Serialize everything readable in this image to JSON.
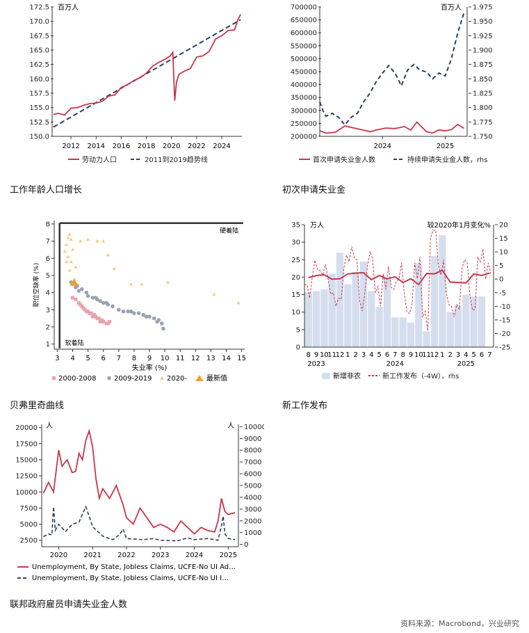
{
  "captions": [
    "工作年龄人口增长",
    "初次申请失业金",
    "贝弗里奇曲线",
    "新工作发布",
    "联邦政府雇员申请失业金人数"
  ],
  "source": "资料来源：Macrobond，兴业研究",
  "colors": {
    "red": "#c8364a",
    "navy": "#2e3e5c",
    "grey": "#9aa3b4",
    "pink": "#e9a2ab",
    "orange": "#f0a030",
    "lightorange": "#f5c77c",
    "lightblue": "#d5deee"
  },
  "chart_data": [
    {
      "id": "labor",
      "type": "line",
      "unit": "百万人",
      "ylim": [
        150.0,
        172.5
      ],
      "yticks": [
        "150.0",
        "152.5",
        "155.0",
        "157.5",
        "160.0",
        "162.5",
        "165.0",
        "167.5",
        "170.0",
        "172.5"
      ],
      "xlim": [
        2010.5,
        2025.6
      ],
      "xticks": [
        "2012",
        "2014",
        "2016",
        "2018",
        "2020",
        "2022",
        "2024"
      ],
      "series": [
        {
          "name": "劳动力人口",
          "x": [
            2010.6,
            2011.0,
            2011.5,
            2012.0,
            2012.5,
            2013.0,
            2013.5,
            2014.0,
            2014.5,
            2015.0,
            2015.5,
            2016.0,
            2016.5,
            2017.0,
            2017.5,
            2018.0,
            2018.5,
            2019.0,
            2019.5,
            2019.9,
            2020.1,
            2020.25,
            2020.4,
            2020.6,
            2021.0,
            2021.5,
            2022.0,
            2022.5,
            2023.0,
            2023.5,
            2024.0,
            2024.5,
            2025.0,
            2025.3,
            2025.5
          ],
          "y": [
            153.8,
            154.0,
            153.7,
            154.9,
            155.0,
            155.4,
            155.7,
            155.8,
            156.1,
            157.0,
            157.2,
            158.5,
            159.0,
            159.7,
            160.2,
            161.0,
            162.2,
            162.9,
            163.4,
            164.0,
            164.6,
            156.2,
            159.5,
            160.8,
            161.3,
            161.8,
            163.8,
            164.0,
            164.8,
            166.9,
            167.5,
            168.4,
            168.5,
            170.4,
            171.2
          ]
        },
        {
          "name": "2011到2019趋势线",
          "x": [
            2010.6,
            2025.5
          ],
          "y": [
            151.6,
            170.3
          ]
        }
      ]
    },
    {
      "id": "claims",
      "type": "line",
      "ylim": [
        200000,
        700000
      ],
      "yticks": [
        "200000",
        "250000",
        "300000",
        "350000",
        "400000",
        "450000",
        "500000",
        "550000",
        "600000",
        "650000",
        "700000"
      ],
      "y2lim": [
        1.75,
        1.975
      ],
      "y2ticks": [
        "1.750",
        "1.775",
        "1.800",
        "1.825",
        "1.850",
        "1.875",
        "1.900",
        "1.925",
        "1.950",
        "1.975"
      ],
      "y2unit": "百万人",
      "xlim": [
        2023.0,
        2025.35
      ],
      "xticks": [
        "2024",
        "2025"
      ],
      "series": [
        {
          "name": "首次申请失业金人数",
          "x": [
            2023.0,
            2023.1,
            2023.25,
            2023.4,
            2023.55,
            2023.7,
            2023.8,
            2023.95,
            2024.05,
            2024.2,
            2024.35,
            2024.45,
            2024.55,
            2024.7,
            2024.8,
            2024.9,
            2025.0,
            2025.1,
            2025.2,
            2025.3
          ],
          "y": [
            222000,
            212000,
            216000,
            240000,
            232000,
            224000,
            218000,
            227000,
            232000,
            230000,
            238000,
            224000,
            255000,
            218000,
            213000,
            225000,
            221000,
            226000,
            246000,
            231000
          ]
        },
        {
          "name": "持续申请失业金人数，rhs",
          "x": [
            2023.0,
            2023.05,
            2023.1,
            2023.2,
            2023.3,
            2023.4,
            2023.5,
            2023.6,
            2023.7,
            2023.8,
            2023.9,
            2024.0,
            2024.1,
            2024.2,
            2024.3,
            2024.4,
            2024.5,
            2024.6,
            2024.7,
            2024.8,
            2024.9,
            2025.0,
            2025.1,
            2025.2,
            2025.3
          ],
          "y": [
            1.81,
            1.795,
            1.785,
            1.79,
            1.783,
            1.77,
            1.783,
            1.79,
            1.81,
            1.825,
            1.845,
            1.86,
            1.873,
            1.86,
            1.838,
            1.865,
            1.875,
            1.865,
            1.862,
            1.85,
            1.86,
            1.855,
            1.885,
            1.93,
            1.965
          ]
        }
      ]
    },
    {
      "id": "beveridge",
      "type": "scatter",
      "xlabel": "失业率 (%)",
      "ylabel": "职位空缺率 (%)",
      "xlim": [
        2.8,
        15.2
      ],
      "ylim": [
        0.7,
        8.2
      ],
      "xticks": [
        "3",
        "4",
        "5",
        "6",
        "7",
        "8",
        "9",
        "10",
        "11",
        "12",
        "13",
        "14",
        "15"
      ],
      "yticks": [
        "1",
        "2",
        "3",
        "4",
        "5",
        "6",
        "7",
        "8"
      ],
      "annotations": [
        "硬着陆",
        "软着陆"
      ],
      "series": [
        {
          "name": "2000-2008",
          "x": [
            4.0,
            4.2,
            4.4,
            4.5,
            4.6,
            4.8,
            5.0,
            5.2,
            5.4,
            5.5,
            5.7,
            5.9,
            6.0,
            6.2,
            4.7,
            4.9,
            5.1,
            5.3,
            5.6,
            5.8,
            6.3,
            6.4
          ],
          "y": [
            3.7,
            3.6,
            3.4,
            3.3,
            3.2,
            3.0,
            2.9,
            2.8,
            2.7,
            2.6,
            2.5,
            2.4,
            2.3,
            2.2,
            3.1,
            2.9,
            2.8,
            2.6,
            2.5,
            2.3,
            2.2,
            2.3
          ]
        },
        {
          "name": "2009-2019",
          "x": [
            3.9,
            4.0,
            4.3,
            4.6,
            4.9,
            5.0,
            5.3,
            5.6,
            5.8,
            6.0,
            6.3,
            6.6,
            7.0,
            7.3,
            7.6,
            8.0,
            8.3,
            8.6,
            9.0,
            9.3,
            9.6,
            9.8,
            9.9,
            4.2,
            4.4,
            5.5,
            6.2,
            7.8,
            8.8,
            9.5
          ],
          "y": [
            4.6,
            4.5,
            4.4,
            4.2,
            4.0,
            3.8,
            3.7,
            3.6,
            3.5,
            3.4,
            3.3,
            3.2,
            3.0,
            2.9,
            2.9,
            2.8,
            2.8,
            2.7,
            2.6,
            2.5,
            2.4,
            2.2,
            1.9,
            4.3,
            4.1,
            3.7,
            3.4,
            2.9,
            2.6,
            2.3
          ]
        },
        {
          "name": "2020-",
          "x": [
            3.5,
            3.6,
            3.7,
            3.8,
            3.9,
            4.0,
            4.2,
            3.6,
            3.7,
            3.9,
            3.8,
            4.5,
            5.0,
            5.6,
            6.0,
            6.3,
            6.7,
            7.8,
            8.5,
            10.2,
            13.2,
            14.8
          ],
          "y": [
            6.4,
            6.8,
            7.2,
            7.4,
            7.1,
            6.5,
            5.5,
            5.8,
            6.1,
            5.8,
            5.3,
            7.0,
            7.1,
            7.0,
            7.0,
            6.2,
            5.4,
            4.5,
            4.5,
            4.6,
            3.9,
            3.4
          ]
        },
        {
          "name": "最新值",
          "x": [
            4.1
          ],
          "y": [
            4.6
          ]
        }
      ]
    },
    {
      "id": "jobs",
      "type": "bar",
      "unit": "万人",
      "y2unit": "较2020年1月变化%",
      "ylim": [
        0,
        35
      ],
      "yticks": [
        "0",
        "5",
        "10",
        "15",
        "20",
        "25",
        "30",
        "35"
      ],
      "y2lim": [
        -25,
        20
      ],
      "y2ticks": [
        "-25",
        "-20",
        "-15",
        "-10",
        "-5",
        "0",
        "5",
        "10",
        "15",
        "20"
      ],
      "categories": [
        "8",
        "9",
        "10",
        "11",
        "12",
        "1",
        "2",
        "3",
        "4",
        "5",
        "6",
        "7",
        "8",
        "9",
        "10",
        "11",
        "12",
        "1",
        "2",
        "3",
        "4",
        "5",
        "6",
        "7"
      ],
      "year_labels": [
        "2023",
        "2024",
        "2025"
      ],
      "series": [
        {
          "name": "新增非农",
          "values": [
            15.8,
            16.0,
            16.5,
            21.0,
            27.0,
            18.0,
            21.5,
            24.5,
            16.0,
            11.5,
            19.5,
            8.5,
            8.5,
            7.0,
            24.0,
            4.5,
            26.0,
            32.0,
            10.0,
            12.0,
            15.0,
            14.5,
            14.5,
            0
          ]
        },
        {
          "name": "新工作发布（-4W），rhs",
          "values": [
            -2,
            1,
            3,
            0,
            -10,
            4,
            12,
            -8,
            5,
            -5,
            2,
            -3,
            0,
            -12,
            6,
            -14,
            15,
            5,
            -5,
            -14,
            4,
            -6,
            8,
            0
          ]
        }
      ]
    },
    {
      "id": "federal",
      "type": "line",
      "ylim": [
        1500,
        20500
      ],
      "yticks": [
        "2500",
        "5000",
        "7500",
        "10000",
        "12500",
        "15000",
        "17500",
        "20000"
      ],
      "y2lim": [
        -200,
        10200
      ],
      "y2ticks": [
        "0",
        "1000",
        "2000",
        "3000",
        "4000",
        "5000",
        "6000",
        "7000",
        "8000",
        "9000",
        "10000"
      ],
      "unit": "人",
      "y2unit": "人",
      "xlim": [
        2019.5,
        2025.3
      ],
      "xticks": [
        "2020",
        "2021",
        "2022",
        "2023",
        "2024",
        "2025"
      ],
      "series": [
        {
          "name": "Unemployment, By State, Jobless Claims, UCFE-No UI Ad…",
          "x": [
            2019.55,
            2019.7,
            2019.85,
            2020.0,
            2020.1,
            2020.25,
            2020.4,
            2020.5,
            2020.6,
            2020.7,
            2020.8,
            2020.9,
            2021.0,
            2021.1,
            2021.2,
            2021.3,
            2021.5,
            2021.7,
            2021.9,
            2022.0,
            2022.2,
            2022.4,
            2022.6,
            2022.8,
            2023.0,
            2023.2,
            2023.4,
            2023.6,
            2023.8,
            2024.0,
            2024.2,
            2024.4,
            2024.6,
            2024.7,
            2024.8,
            2024.9,
            2025.0,
            2025.2
          ],
          "y": [
            9800,
            11500,
            10000,
            16500,
            14000,
            15000,
            13000,
            13200,
            16000,
            15000,
            18000,
            19500,
            17000,
            12000,
            9000,
            10500,
            9000,
            11000,
            8000,
            6000,
            5000,
            7500,
            6000,
            4500,
            5000,
            4500,
            3800,
            5500,
            4500,
            3500,
            4500,
            4000,
            3800,
            5500,
            9000,
            7000,
            6500,
            6800
          ]
        },
        {
          "name": "Unemployment, By State, Jobless Claims, UCFE-No UI I…",
          "x": [
            2019.55,
            2019.7,
            2019.8,
            2019.85,
            2019.9,
            2020.0,
            2020.2,
            2020.4,
            2020.6,
            2020.8,
            2020.9,
            2021.0,
            2021.3,
            2021.6,
            2021.8,
            2021.9,
            2022.0,
            2022.5,
            2022.8,
            2023.0,
            2023.5,
            2023.8,
            2024.0,
            2024.4,
            2024.7,
            2024.8,
            2024.85,
            2024.9,
            2025.0,
            2025.2
          ],
          "y": [
            650,
            900,
            800,
            3200,
            1200,
            1700,
            1100,
            1700,
            1900,
            3200,
            2400,
            1500,
            700,
            400,
            850,
            1300,
            500,
            400,
            500,
            350,
            300,
            550,
            400,
            500,
            350,
            1600,
            2400,
            900,
            500,
            400
          ]
        }
      ]
    }
  ]
}
